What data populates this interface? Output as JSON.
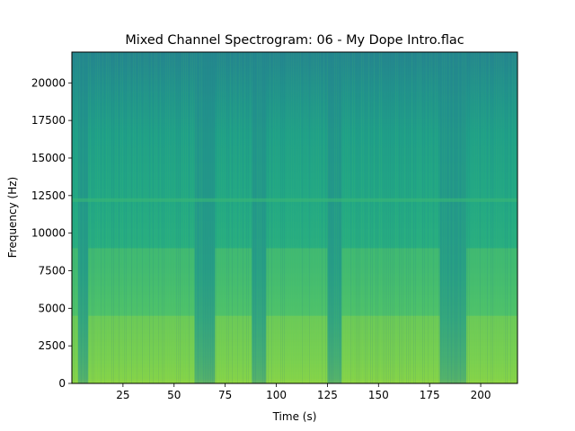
{
  "chart_data": {
    "type": "heatmap",
    "title": "Mixed Channel Spectrogram: 06 - My Dope Intro.flac",
    "xlabel": "Time (s)",
    "ylabel": "Frequency (Hz)",
    "xlim": [
      0,
      218
    ],
    "ylim": [
      0,
      22050
    ],
    "x_ticks": [
      25,
      50,
      75,
      100,
      125,
      150,
      175,
      200
    ],
    "y_ticks": [
      0,
      2500,
      5000,
      7500,
      10000,
      12500,
      15000,
      17500,
      20000
    ],
    "x_tick_labels": [
      "25",
      "50",
      "75",
      "100",
      "125",
      "150",
      "175",
      "200"
    ],
    "y_tick_labels": [
      "0",
      "2500",
      "5000",
      "7500",
      "10000",
      "12500",
      "15000",
      "17500",
      "20000"
    ],
    "colormap": "viridis",
    "colors": {
      "low": "#2a788e",
      "mid": "#22a884",
      "high": "#7ad151",
      "peak": "#bddf26"
    },
    "loud_segments_s": [
      [
        0,
        3
      ],
      [
        8,
        26
      ],
      [
        26,
        60
      ],
      [
        70,
        88
      ],
      [
        95,
        125
      ],
      [
        132,
        150
      ],
      [
        150,
        180
      ],
      [
        193,
        218
      ]
    ],
    "quiet_segments_s": [
      [
        3,
        8
      ],
      [
        60,
        70
      ],
      [
        88,
        95
      ],
      [
        125,
        132
      ],
      [
        180,
        193
      ]
    ],
    "tonal_band_hz": 12200
  }
}
